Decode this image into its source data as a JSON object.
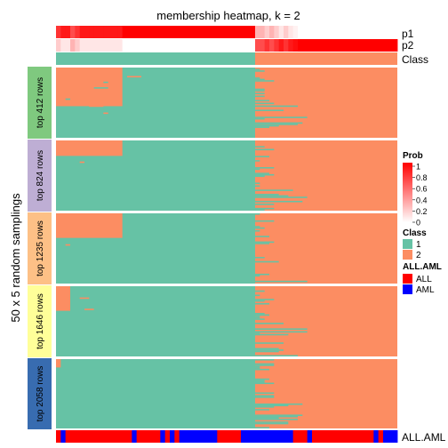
{
  "chart_data": {
    "type": "heatmap",
    "title": "membership heatmap, k = 2",
    "ylabel": "50 x 5 random samplings",
    "annotation_rows": [
      {
        "name": "p1",
        "scale": "Prob"
      },
      {
        "name": "p2",
        "scale": "Prob"
      },
      {
        "name": "Class",
        "scale": "Class"
      }
    ],
    "bottom_annotation": {
      "name": "ALL.AML"
    },
    "row_groups": [
      {
        "label": "top 412 rows",
        "color": "#7fc97f"
      },
      {
        "label": "top 824 rows",
        "color": "#beaed4"
      },
      {
        "label": "top 1235 rows",
        "color": "#fdc086"
      },
      {
        "label": "top 1646 rows",
        "color": "#ffff99"
      },
      {
        "label": "top 2058 rows",
        "color": "#386cb0"
      }
    ],
    "n_columns": 72,
    "class_split_column": 42,
    "class_per_column": "1 for columns 1-42, 2 for columns 43-72",
    "p1_per_column": [
      0.8,
      0.9,
      0.9,
      0.7,
      0.8,
      0.9,
      0.9,
      0.9,
      0.9,
      0.9,
      0.9,
      0.9,
      0.9,
      0.9,
      1,
      1,
      1,
      1,
      1,
      1,
      1,
      1,
      1,
      1,
      1,
      1,
      1,
      1,
      1,
      1,
      1,
      1,
      1,
      1,
      1,
      1,
      1,
      1,
      1,
      1,
      1,
      1,
      0.3,
      0.3,
      0.2,
      0.3,
      0.2,
      0.1,
      0.2,
      0.1,
      0.05,
      0,
      0,
      0,
      0,
      0,
      0,
      0,
      0,
      0,
      0,
      0,
      0,
      0,
      0,
      0,
      0,
      0,
      0,
      0,
      0,
      0
    ],
    "ALL_AML_per_column": [
      "ALL",
      "AML",
      "ALL",
      "ALL",
      "ALL",
      "ALL",
      "ALL",
      "ALL",
      "ALL",
      "ALL",
      "ALL",
      "ALL",
      "ALL",
      "ALL",
      "ALL",
      "ALL",
      "AML",
      "ALL",
      "ALL",
      "ALL",
      "ALL",
      "ALL",
      "AML",
      "ALL",
      "AML",
      "ALL",
      "AML",
      "AML",
      "AML",
      "AML",
      "AML",
      "AML",
      "AML",
      "AML",
      "ALL",
      "ALL",
      "ALL",
      "ALL",
      "ALL",
      "AML",
      "AML",
      "AML",
      "AML",
      "AML",
      "AML",
      "AML",
      "AML",
      "AML",
      "AML",
      "AML",
      "ALL",
      "ALL",
      "ALL",
      "AML",
      "ALL",
      "ALL",
      "ALL",
      "ALL",
      "ALL",
      "ALL",
      "ALL",
      "ALL",
      "ALL",
      "ALL",
      "ALL",
      "ALL",
      "ALL",
      "AML",
      "ALL",
      "AML",
      "AML",
      "AML"
    ],
    "legend": {
      "prob_title": "Prob",
      "prob_ticks": [
        "1",
        "0.8",
        "0.6",
        "0.4",
        "0.2",
        "0"
      ],
      "class_title": "Class",
      "class_items": [
        {
          "label": "1",
          "color": "#66c2a5"
        },
        {
          "label": "2",
          "color": "#fc8d62"
        }
      ],
      "aml_title": "ALL.AML",
      "aml_items": [
        {
          "label": "ALL",
          "color": "#ff0000"
        },
        {
          "label": "AML",
          "color": "#0000ff"
        }
      ]
    }
  }
}
